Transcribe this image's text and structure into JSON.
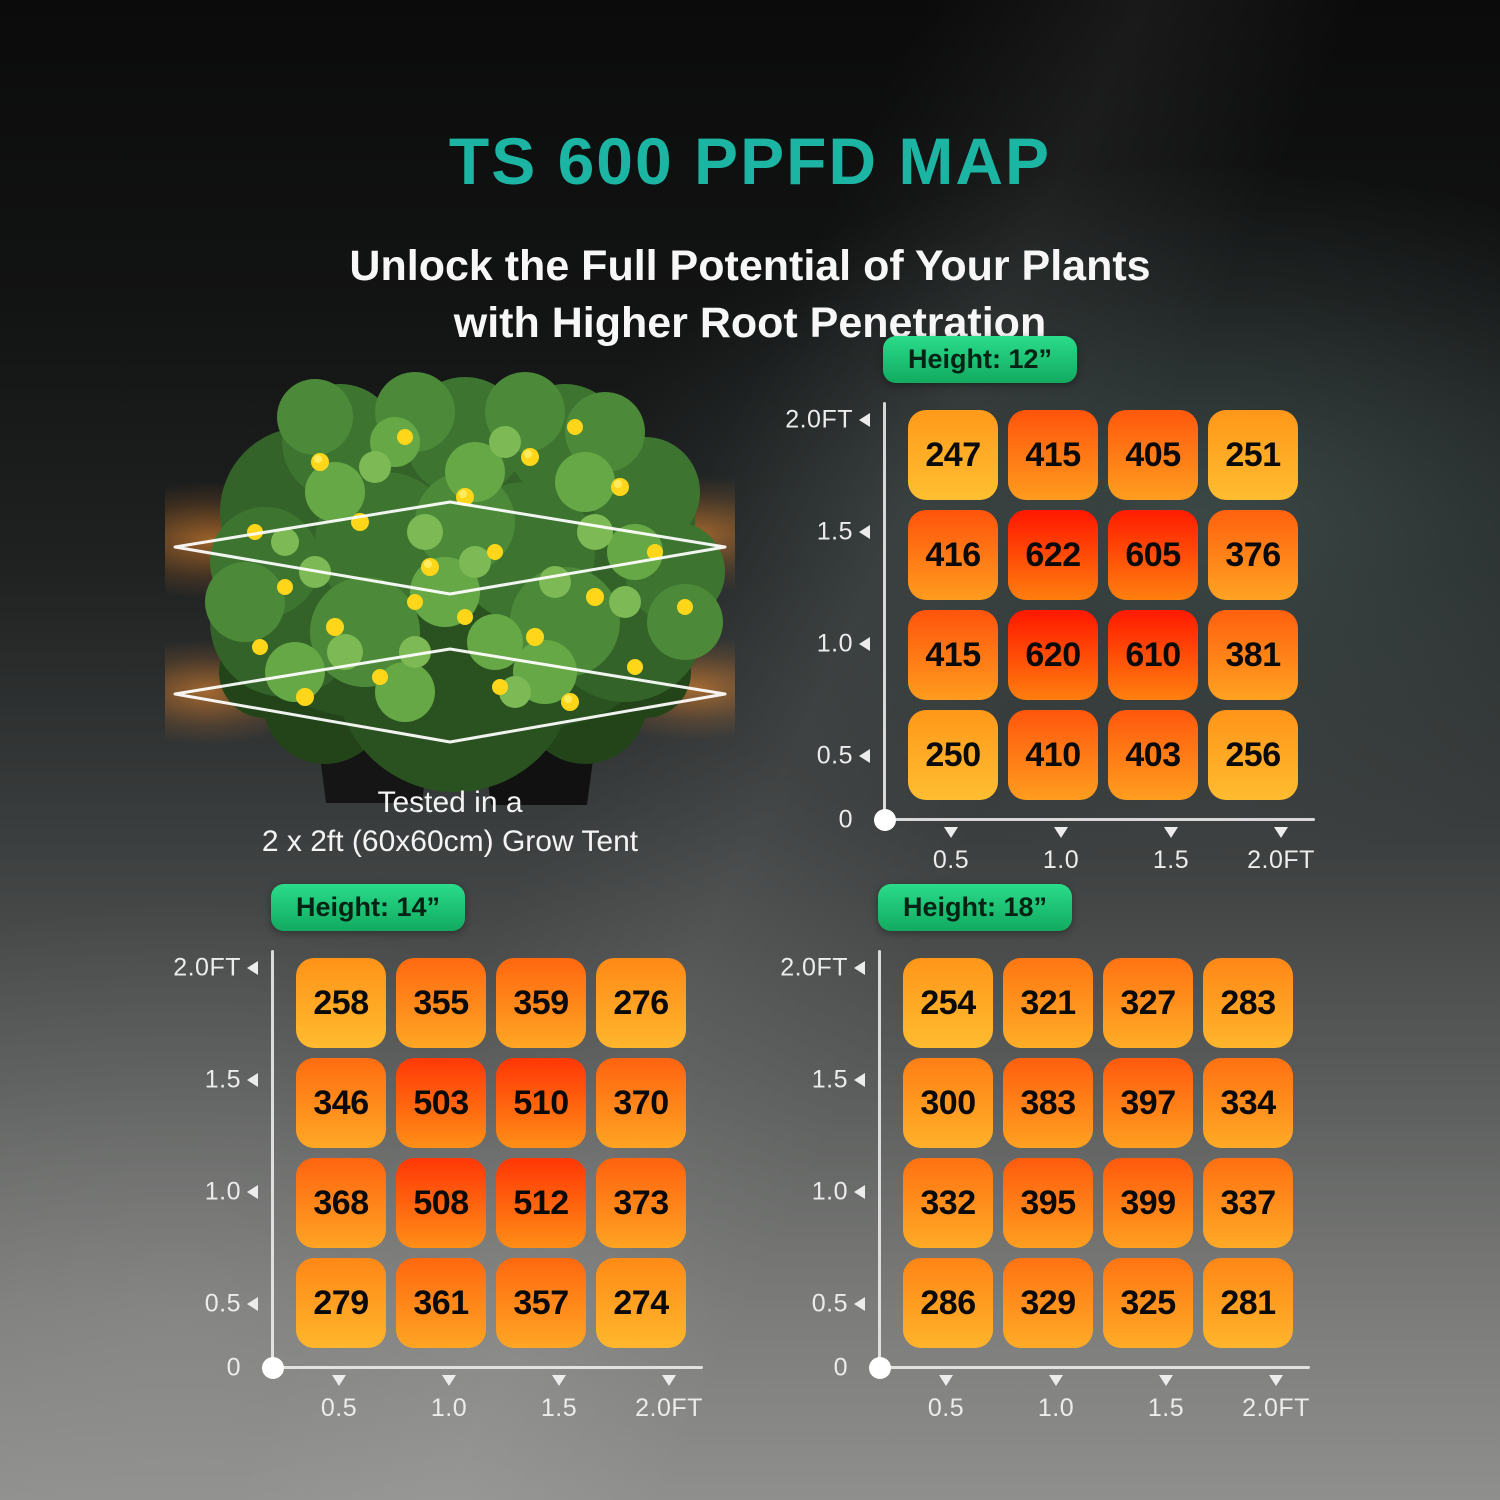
{
  "page": {
    "title": "TS 600 PPFD MAP",
    "subtitle_line1": "Unlock the Full Potential of Your Plants",
    "subtitle_line2": "with Higher Root Penetration"
  },
  "plant": {
    "caption_line1": "Tested in a",
    "caption_line2": "2 x 2ft (60x60cm) Grow Tent"
  },
  "colors": {
    "title_accent": "#1CB5A3",
    "badge_gradient_top": "#2ADC8A",
    "badge_gradient_bottom": "#12AA60",
    "badge_text": "#042314",
    "axis": "#ECECEC",
    "cell_text": "#0A0A0A",
    "heat_low_top": "#FFA21C",
    "heat_low_bottom": "#FFC233",
    "heat_high_top": "#FF1A00",
    "heat_high_bottom": "#FF7E0E"
  },
  "heat_scale": {
    "value_min": 240,
    "value_max": 622
  },
  "chart_data": [
    {
      "type": "heatmap",
      "title": "Height: 12”",
      "x_tick_labels": [
        "0.5",
        "1.0",
        "1.5",
        "2.0FT"
      ],
      "y_tick_labels": [
        "2.0FT",
        "1.5",
        "1.0",
        "0.5"
      ],
      "origin_label": "0",
      "x_range_ft": [
        0,
        2
      ],
      "y_range_ft": [
        0,
        2
      ],
      "grid": false,
      "values": [
        [
          247,
          415,
          405,
          251
        ],
        [
          416,
          622,
          605,
          376
        ],
        [
          415,
          620,
          610,
          381
        ],
        [
          250,
          410,
          403,
          256
        ]
      ]
    },
    {
      "type": "heatmap",
      "title": "Height: 14”",
      "x_tick_labels": [
        "0.5",
        "1.0",
        "1.5",
        "2.0FT"
      ],
      "y_tick_labels": [
        "2.0FT",
        "1.5",
        "1.0",
        "0.5"
      ],
      "origin_label": "0",
      "x_range_ft": [
        0,
        2
      ],
      "y_range_ft": [
        0,
        2
      ],
      "grid": false,
      "values": [
        [
          258,
          355,
          359,
          276
        ],
        [
          346,
          503,
          510,
          370
        ],
        [
          368,
          508,
          512,
          373
        ],
        [
          279,
          361,
          357,
          274
        ]
      ]
    },
    {
      "type": "heatmap",
      "title": "Height: 18”",
      "x_tick_labels": [
        "0.5",
        "1.0",
        "1.5",
        "2.0FT"
      ],
      "y_tick_labels": [
        "2.0FT",
        "1.5",
        "1.0",
        "0.5"
      ],
      "origin_label": "0",
      "x_range_ft": [
        0,
        2
      ],
      "y_range_ft": [
        0,
        2
      ],
      "grid": false,
      "values": [
        [
          254,
          321,
          327,
          283
        ],
        [
          300,
          383,
          397,
          334
        ],
        [
          332,
          395,
          399,
          337
        ],
        [
          286,
          329,
          325,
          281
        ]
      ]
    }
  ]
}
